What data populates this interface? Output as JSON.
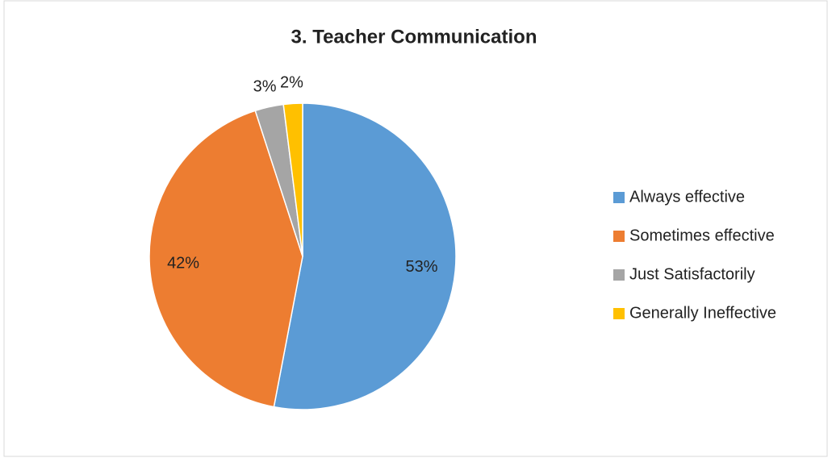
{
  "chart_data": {
    "type": "pie",
    "title": "3. Teacher Communication",
    "categories": [
      "Always effective",
      "Sometimes effective",
      "Just Satisfactorily",
      "Generally Ineffective"
    ],
    "values": [
      53,
      42,
      3,
      2
    ],
    "value_labels": [
      "53%",
      "42%",
      "3%",
      "2%"
    ],
    "colors": [
      "#5b9bd5",
      "#ed7d31",
      "#a5a5a5",
      "#ffc000"
    ],
    "legend": "right"
  }
}
